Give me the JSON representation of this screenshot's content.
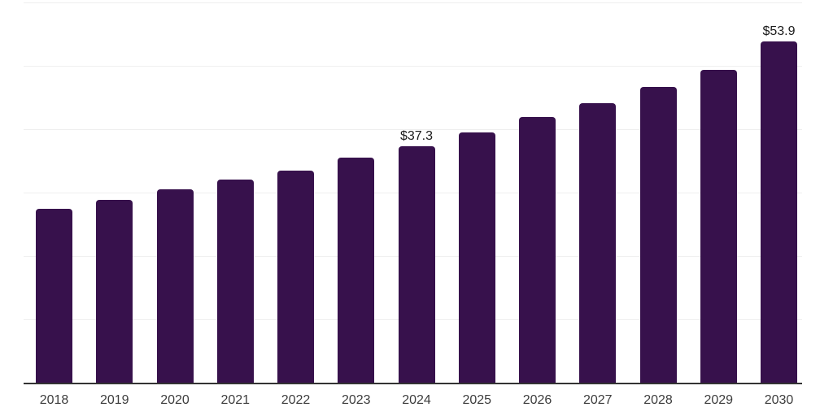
{
  "chart_data": {
    "type": "bar",
    "categories": [
      "2018",
      "2019",
      "2020",
      "2021",
      "2022",
      "2023",
      "2024",
      "2025",
      "2026",
      "2027",
      "2028",
      "2029",
      "2030"
    ],
    "values": [
      27.4,
      28.9,
      30.5,
      32.0,
      33.5,
      35.5,
      37.3,
      39.5,
      41.9,
      44.1,
      46.7,
      49.4,
      53.9
    ],
    "data_labels": {
      "2024": "$37.3",
      "2030": "$53.9"
    },
    "title": "",
    "xlabel": "",
    "ylabel": "",
    "ylim": [
      0,
      60
    ],
    "gridline_step": 10,
    "grid": true,
    "legend": "none",
    "colors": {
      "bar": "#37114C",
      "gridline": "#efefef",
      "axis_line": "#333333",
      "tick_label": "#3d3d3d",
      "value_label": "#1a1a1a",
      "background": "#ffffff"
    }
  }
}
